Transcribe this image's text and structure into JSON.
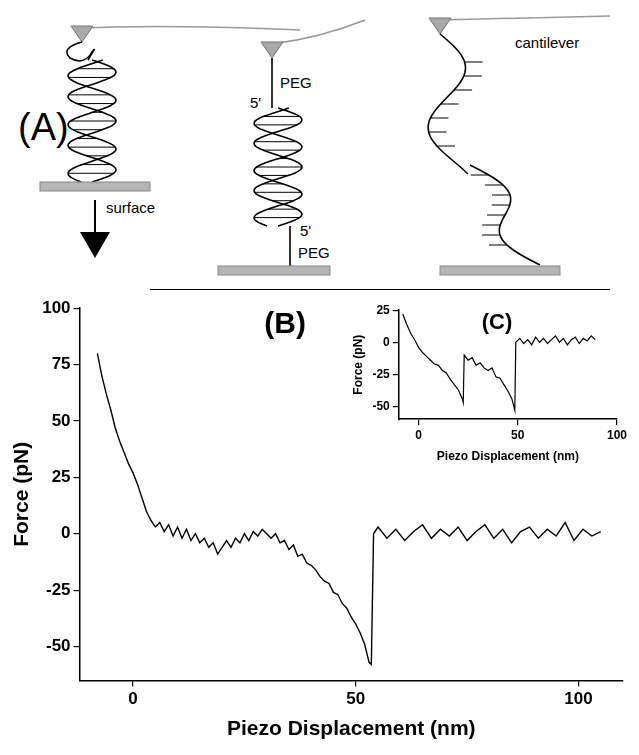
{
  "panel_a": {
    "label": "(A)",
    "surface_label": "surface",
    "upper_end": "5'",
    "upper_linker": "PEG",
    "lower_end": "5'",
    "lower_linker": "PEG",
    "cantilever_label": "cantilever"
  },
  "chart_data": [
    {
      "type": "line",
      "annotations": [
        "(B)"
      ],
      "y_label": "Force (pN)",
      "x_label": "Piezo Displacement (nm)",
      "x": [
        -8,
        -7,
        -6,
        -5,
        -4,
        -3,
        -2,
        -1,
        0,
        1,
        2,
        3,
        4,
        5,
        6,
        7,
        8,
        9,
        10,
        11,
        12,
        13,
        14,
        15,
        16,
        17,
        18,
        19,
        20,
        21,
        22,
        23,
        24,
        25,
        26,
        27,
        28,
        29,
        30,
        31,
        32,
        33,
        34,
        35,
        36,
        37,
        38,
        39,
        40,
        41,
        42,
        43,
        44,
        45,
        46,
        47,
        48,
        49,
        50,
        51,
        52,
        53,
        53.5,
        54,
        55,
        57,
        59,
        61,
        63,
        65,
        67,
        69,
        71,
        73,
        75,
        77,
        79,
        81,
        83,
        85,
        87,
        89,
        91,
        93,
        95,
        97,
        99,
        101,
        103,
        105
      ],
      "values": [
        80,
        70,
        62,
        55,
        47,
        41,
        36,
        31,
        27,
        22,
        16,
        10,
        6,
        3,
        5,
        1,
        4,
        -1,
        3,
        -2,
        2,
        -3,
        0,
        -4,
        -2,
        -6,
        -4,
        -9,
        -6,
        -3,
        -6,
        -2,
        -4,
        0,
        -3,
        1,
        -1,
        2,
        0,
        -2,
        0,
        -4,
        -3,
        -7,
        -5,
        -10,
        -9,
        -13,
        -14,
        -16,
        -19,
        -21,
        -22,
        -26,
        -27,
        -31,
        -33,
        -37,
        -40,
        -44,
        -49,
        -57,
        -58,
        0,
        3,
        -2,
        2,
        -3,
        1,
        4,
        -2,
        2,
        -1,
        3,
        -3,
        1,
        4,
        -2,
        2,
        -4,
        1,
        3,
        -2,
        2,
        -1,
        5,
        -3,
        2,
        -1,
        1
      ],
      "color": "#000000",
      "xlim": [
        -12,
        110
      ],
      "xticks": [
        0,
        50,
        100
      ],
      "ylim": [
        -65,
        100
      ],
      "yticks": [
        -50,
        -25,
        0,
        25,
        50,
        75,
        100
      ],
      "grid": false
    },
    {
      "type": "line",
      "annotations": [
        "(C)"
      ],
      "y_label": "Force (pN)",
      "x_label": "Piezo Displacement (nm)",
      "x": [
        -8,
        -6,
        -4,
        -2,
        0,
        2,
        4,
        6,
        8,
        10,
        12,
        14,
        16,
        18,
        20,
        22,
        22.5,
        23,
        25,
        27,
        29,
        31,
        33,
        35,
        37,
        39,
        41,
        43,
        45,
        47,
        48,
        48.5,
        49,
        51,
        53,
        55,
        57,
        59,
        61,
        63,
        65,
        67,
        69,
        71,
        73,
        75,
        77,
        79,
        81,
        83,
        85,
        87,
        89
      ],
      "values": [
        22,
        14,
        7,
        2,
        -4,
        -8,
        -11,
        -14,
        -17,
        -18,
        -22,
        -24,
        -29,
        -33,
        -37,
        -44,
        -47,
        -10,
        -14,
        -12,
        -18,
        -16,
        -20,
        -22,
        -20,
        -27,
        -28,
        -33,
        -38,
        -44,
        -50,
        -53,
        0,
        3,
        -1,
        2,
        -2,
        4,
        0,
        3,
        -1,
        2,
        5,
        0,
        3,
        -2,
        2,
        4,
        -1,
        3,
        1,
        5,
        2
      ],
      "color": "#000000",
      "xlim": [
        -10,
        100
      ],
      "xticks": [
        0,
        50,
        100
      ],
      "ylim": [
        -60,
        25
      ],
      "yticks": [
        -50,
        -25,
        0,
        25
      ],
      "grid": false
    }
  ]
}
